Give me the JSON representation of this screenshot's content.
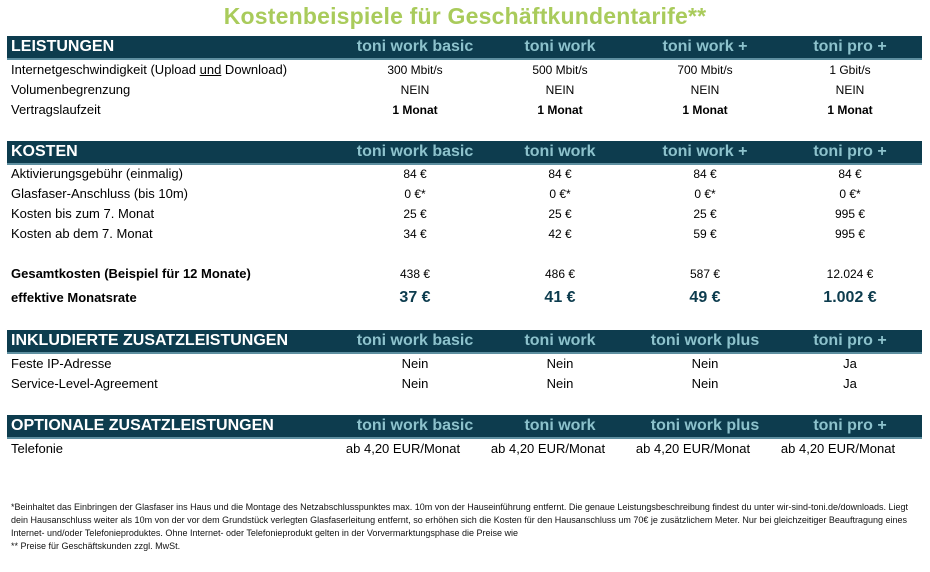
{
  "title": "Kostenbeispiele für Geschäftkundentarife**",
  "leistungen": {
    "header": "LEISTUNGEN",
    "columns": [
      "toni work basic",
      "toni work",
      "toni work +",
      "toni pro +"
    ],
    "rows": [
      {
        "label_pre": "Internetgeschwindigkeit (Upload ",
        "label_u": "und",
        "label_post": " Download)",
        "values": [
          "300 Mbit/s",
          "500 Mbit/s",
          "700 Mbit/s",
          "1 Gbit/s"
        ]
      },
      {
        "label": "Volumenbegrenzung",
        "values": [
          "NEIN",
          "NEIN",
          "NEIN",
          "NEIN"
        ]
      },
      {
        "label": "Vertragslaufzeit",
        "values": [
          "1 Monat",
          "1 Monat",
          "1 Monat",
          "1 Monat"
        ]
      }
    ]
  },
  "kosten": {
    "header": "KOSTEN",
    "columns": [
      "toni work basic",
      "toni work",
      "toni work +",
      "toni pro +"
    ],
    "rows": [
      {
        "label": "Aktivierungsgebühr (einmalig)",
        "values": [
          "84 €",
          "84 €",
          "84 €",
          "84 €"
        ]
      },
      {
        "label": "Glasfaser-Anschluss (bis 10m)",
        "values": [
          "0 €*",
          "0 €*",
          "0 €*",
          "0 €*"
        ]
      },
      {
        "label": "Kosten bis zum 7. Monat",
        "values": [
          "25 €",
          "25 €",
          "25 €",
          "995 €"
        ]
      },
      {
        "label": "Kosten ab dem 7. Monat",
        "values": [
          "34 €",
          "42 €",
          "59 €",
          "995 €"
        ]
      }
    ],
    "gesamt": {
      "label": "Gesamtkosten (Beispiel für 12 Monate)",
      "values": [
        "438 €",
        "486 €",
        "587 €",
        "12.024 €"
      ]
    },
    "rate": {
      "label": "effektive Monatsrate",
      "values": [
        "37 €",
        "41 €",
        "49 €",
        "1.002 €"
      ]
    }
  },
  "inklusive": {
    "header": "INKLUDIERTE ZUSATZLEISTUNGEN",
    "columns": [
      "toni work basic",
      "toni work",
      "toni work plus",
      "toni pro +"
    ],
    "rows": [
      {
        "label": "Feste IP-Adresse",
        "values": [
          "Nein",
          "Nein",
          "Nein",
          "Ja"
        ]
      },
      {
        "label": "Service-Level-Agreement",
        "values": [
          "Nein",
          "Nein",
          "Nein",
          "Ja"
        ]
      }
    ]
  },
  "optional": {
    "header": "OPTIONALE ZUSATZLEISTUNGEN",
    "columns": [
      "toni work basic",
      "toni work",
      "toni work plus",
      "toni pro +"
    ],
    "rows": [
      {
        "label": "Telefonie",
        "values": [
          "ab 4,20 EUR/Monat",
          "ab 4,20 EUR/Monat",
          "ab 4,20 EUR/Monat",
          "ab 4,20 EUR/Monat"
        ]
      }
    ]
  },
  "footer": {
    "line1": "*Beinhaltet das Einbringen der Glasfaser ins Haus und die Montage des Netzabschlusspunktes max. 10m von der Hauseinführung entfernt. Die genaue Leistungsbeschreibung findest du unter wir-sind-toni.de/downloads. Liegt dein Hausanschluss weiter als 10m von der vor dem Grundstück verlegten Glasfaserleitung entfernt, so erhöhen sich die Kosten für den Hausanschluss um 70€ je zusätzlichem Meter. Nur bei gleichzeitiger Beauftragung eines Internet- und/oder Telefonieproduktes. Ohne Internet- oder Telefonieprodukt gelten in der Vorvermarktungsphase die Preise wie",
    "line2": "** Preise für Geschäftskunden zzgl. MwSt."
  }
}
